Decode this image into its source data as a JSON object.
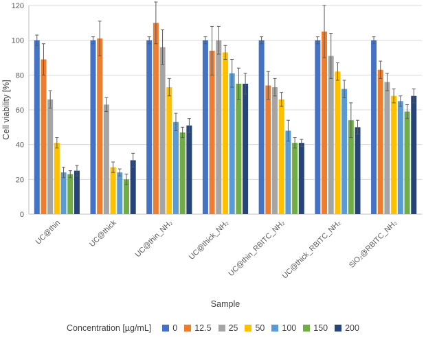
{
  "chart_data": {
    "type": "bar",
    "title": "",
    "xlabel": "Sample",
    "ylabel": "Cell viability [%]",
    "ylim": [
      0,
      120
    ],
    "yticks": [
      0,
      20,
      40,
      60,
      80,
      100,
      120
    ],
    "grid": "horizontal",
    "legend_position": "bottom",
    "legend_title": "Concentration [µg/mL]",
    "categories": [
      "UC@thin",
      "UC@thick",
      "UC@thin_NH₂",
      "UC@thick_NH₂",
      "UC@thin_RBITC_NH₂",
      "UC@thick_RBITC_NH₂",
      "SiO₂@RBITC_NH₂"
    ],
    "series": [
      {
        "name": "0",
        "color": "#4472C4",
        "values": [
          100,
          100,
          100,
          100,
          100,
          100,
          100
        ],
        "errors": [
          3,
          2,
          2,
          2,
          2,
          2,
          2
        ]
      },
      {
        "name": "12.5",
        "color": "#ED7D31",
        "values": [
          89,
          101,
          110,
          94,
          74,
          105,
          83
        ],
        "errors": [
          9,
          10,
          12,
          14,
          8,
          15,
          5
        ]
      },
      {
        "name": "25",
        "color": "#A5A5A5",
        "values": [
          66,
          63,
          96,
          100,
          73,
          91,
          76
        ],
        "errors": [
          5,
          4,
          10,
          8,
          5,
          13,
          5
        ]
      },
      {
        "name": "50",
        "color": "#FFC000",
        "values": [
          41,
          27,
          73,
          93,
          66,
          82,
          68
        ],
        "errors": [
          3,
          3,
          5,
          4,
          4,
          5,
          4
        ]
      },
      {
        "name": "100",
        "color": "#5B9BD5",
        "values": [
          24,
          24,
          53,
          81,
          48,
          72,
          65
        ],
        "errors": [
          3,
          2,
          5,
          8,
          6,
          5,
          3
        ]
      },
      {
        "name": "150",
        "color": "#70AD47",
        "values": [
          23,
          20,
          47,
          75,
          41,
          54,
          59
        ],
        "errors": [
          2,
          3,
          3,
          9,
          3,
          10,
          4
        ]
      },
      {
        "name": "200",
        "color": "#264478",
        "values": [
          25,
          31,
          51,
          75,
          41,
          50,
          68
        ],
        "errors": [
          3,
          4,
          4,
          6,
          2,
          4,
          4
        ]
      }
    ]
  }
}
